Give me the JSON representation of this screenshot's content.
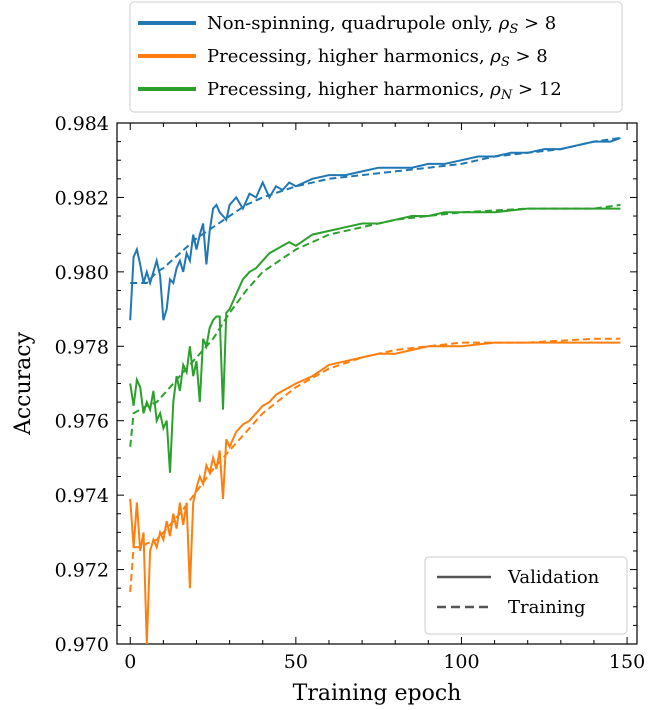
{
  "chart_data": {
    "type": "line",
    "xlabel": "Training epoch",
    "ylabel": "Accuracy",
    "xlim": [
      -4,
      153
    ],
    "ylim": [
      0.97,
      0.984
    ],
    "xticks": [
      0,
      50,
      100,
      150
    ],
    "yticks": [
      0.97,
      0.972,
      0.974,
      0.976,
      0.978,
      0.98,
      0.982,
      0.984
    ],
    "xtick_labels": [
      "0",
      "50",
      "100",
      "150"
    ],
    "ytick_labels": [
      "0.970",
      "0.972",
      "0.974",
      "0.976",
      "0.978",
      "0.980",
      "0.982",
      "0.984"
    ],
    "grid": false,
    "legend_top": {
      "placement": "above plot",
      "entries": [
        {
          "label_prefix": "Non-spinning, quadrupole only, ",
          "label_math": "ρ",
          "label_sub": "S",
          "label_suffix": " > 8",
          "color": "#1f77b4"
        },
        {
          "label_prefix": "Precessing, higher harmonics, ",
          "label_math": "ρ",
          "label_sub": "S",
          "label_suffix": " > 8",
          "color": "#ff7f0e"
        },
        {
          "label_prefix": "Precessing, higher harmonics, ",
          "label_math": "ρ",
          "label_sub": "N",
          "label_suffix": " > 12",
          "color": "#2ca02c"
        }
      ]
    },
    "legend_style": {
      "placement": "lower right",
      "entries": [
        {
          "label": "Validation",
          "style": "solid",
          "color": "#555555"
        },
        {
          "label": "Training",
          "style": "dashed",
          "color": "#555555"
        }
      ]
    },
    "series": [
      {
        "color": "#1f77b4",
        "validation": [
          [
            0,
            0.9787
          ],
          [
            1,
            0.9804
          ],
          [
            2,
            0.9806
          ],
          [
            3,
            0.9802
          ],
          [
            4,
            0.9797
          ],
          [
            5,
            0.98
          ],
          [
            6,
            0.9797
          ],
          [
            7,
            0.98
          ],
          [
            8,
            0.9803
          ],
          [
            9,
            0.9799
          ],
          [
            10,
            0.9787
          ],
          [
            11,
            0.979
          ],
          [
            12,
            0.9798
          ],
          [
            13,
            0.9797
          ],
          [
            14,
            0.9801
          ],
          [
            15,
            0.9803
          ],
          [
            16,
            0.98
          ],
          [
            17,
            0.9805
          ],
          [
            18,
            0.9803
          ],
          [
            19,
            0.981
          ],
          [
            20,
            0.9806
          ],
          [
            21,
            0.981
          ],
          [
            22,
            0.9813
          ],
          [
            23,
            0.9802
          ],
          [
            24,
            0.9811
          ],
          [
            25,
            0.9817
          ],
          [
            26,
            0.9818
          ],
          [
            27,
            0.9816
          ],
          [
            28,
            0.9815
          ],
          [
            29,
            0.9814
          ],
          [
            30,
            0.9818
          ],
          [
            32,
            0.982
          ],
          [
            34,
            0.9817
          ],
          [
            36,
            0.9821
          ],
          [
            38,
            0.982
          ],
          [
            40,
            0.9824
          ],
          [
            42,
            0.982
          ],
          [
            44,
            0.9823
          ],
          [
            46,
            0.9822
          ],
          [
            48,
            0.9824
          ],
          [
            50,
            0.9823
          ],
          [
            55,
            0.9825
          ],
          [
            60,
            0.9826
          ],
          [
            65,
            0.9826
          ],
          [
            70,
            0.9827
          ],
          [
            75,
            0.9828
          ],
          [
            80,
            0.9828
          ],
          [
            85,
            0.9828
          ],
          [
            90,
            0.9829
          ],
          [
            95,
            0.9829
          ],
          [
            100,
            0.983
          ],
          [
            105,
            0.9831
          ],
          [
            110,
            0.9831
          ],
          [
            115,
            0.9832
          ],
          [
            120,
            0.9832
          ],
          [
            125,
            0.9833
          ],
          [
            130,
            0.9833
          ],
          [
            135,
            0.9834
          ],
          [
            140,
            0.9835
          ],
          [
            145,
            0.9835
          ],
          [
            148,
            0.9836
          ]
        ],
        "training": [
          [
            0,
            0.9797
          ],
          [
            2,
            0.9797
          ],
          [
            5,
            0.9797
          ],
          [
            8,
            0.98
          ],
          [
            10,
            0.9801
          ],
          [
            15,
            0.9805
          ],
          [
            20,
            0.9809
          ],
          [
            25,
            0.9812
          ],
          [
            30,
            0.9815
          ],
          [
            35,
            0.9818
          ],
          [
            40,
            0.982
          ],
          [
            50,
            0.9823
          ],
          [
            60,
            0.9825
          ],
          [
            70,
            0.9826
          ],
          [
            80,
            0.9827
          ],
          [
            90,
            0.9828
          ],
          [
            100,
            0.9829
          ],
          [
            110,
            0.9831
          ],
          [
            120,
            0.9832
          ],
          [
            130,
            0.9833
          ],
          [
            140,
            0.9835
          ],
          [
            148,
            0.9836
          ]
        ]
      },
      {
        "color": "#ff7f0e",
        "validation": [
          [
            0,
            0.9739
          ],
          [
            1,
            0.9726
          ],
          [
            2,
            0.9738
          ],
          [
            3,
            0.9725
          ],
          [
            4,
            0.973
          ],
          [
            5,
            0.97
          ],
          [
            6,
            0.9725
          ],
          [
            7,
            0.9728
          ],
          [
            8,
            0.9726
          ],
          [
            9,
            0.973
          ],
          [
            10,
            0.9728
          ],
          [
            11,
            0.9733
          ],
          [
            12,
            0.9729
          ],
          [
            13,
            0.9735
          ],
          [
            14,
            0.9731
          ],
          [
            15,
            0.9738
          ],
          [
            16,
            0.9732
          ],
          [
            17,
            0.9738
          ],
          [
            18,
            0.9715
          ],
          [
            19,
            0.9738
          ],
          [
            20,
            0.9742
          ],
          [
            21,
            0.9745
          ],
          [
            22,
            0.9743
          ],
          [
            23,
            0.9748
          ],
          [
            24,
            0.9746
          ],
          [
            25,
            0.975
          ],
          [
            26,
            0.9747
          ],
          [
            27,
            0.9752
          ],
          [
            28,
            0.9739
          ],
          [
            29,
            0.9755
          ],
          [
            30,
            0.9753
          ],
          [
            32,
            0.9757
          ],
          [
            34,
            0.9759
          ],
          [
            36,
            0.976
          ],
          [
            38,
            0.9762
          ],
          [
            40,
            0.9764
          ],
          [
            42,
            0.9765
          ],
          [
            44,
            0.9767
          ],
          [
            46,
            0.9768
          ],
          [
            48,
            0.9769
          ],
          [
            50,
            0.977
          ],
          [
            55,
            0.9772
          ],
          [
            60,
            0.9775
          ],
          [
            65,
            0.9776
          ],
          [
            70,
            0.9777
          ],
          [
            75,
            0.9778
          ],
          [
            80,
            0.9778
          ],
          [
            85,
            0.9779
          ],
          [
            90,
            0.978
          ],
          [
            95,
            0.978
          ],
          [
            100,
            0.978
          ],
          [
            110,
            0.9781
          ],
          [
            120,
            0.9781
          ],
          [
            130,
            0.9781
          ],
          [
            140,
            0.9781
          ],
          [
            148,
            0.9781
          ]
        ],
        "training": [
          [
            0,
            0.9714
          ],
          [
            1,
            0.9726
          ],
          [
            3,
            0.9726
          ],
          [
            5,
            0.9727
          ],
          [
            8,
            0.9728
          ],
          [
            10,
            0.973
          ],
          [
            15,
            0.9735
          ],
          [
            20,
            0.9741
          ],
          [
            25,
            0.9747
          ],
          [
            30,
            0.9752
          ],
          [
            35,
            0.9757
          ],
          [
            40,
            0.9762
          ],
          [
            50,
            0.9769
          ],
          [
            60,
            0.9774
          ],
          [
            70,
            0.9777
          ],
          [
            80,
            0.9779
          ],
          [
            90,
            0.978
          ],
          [
            100,
            0.9781
          ],
          [
            120,
            0.9781
          ],
          [
            140,
            0.9782
          ],
          [
            148,
            0.9782
          ]
        ]
      },
      {
        "color": "#2ca02c",
        "validation": [
          [
            0,
            0.977
          ],
          [
            1,
            0.9764
          ],
          [
            2,
            0.9771
          ],
          [
            3,
            0.9769
          ],
          [
            4,
            0.9762
          ],
          [
            5,
            0.9765
          ],
          [
            6,
            0.9763
          ],
          [
            7,
            0.9768
          ],
          [
            8,
            0.976
          ],
          [
            9,
            0.9762
          ],
          [
            10,
            0.9758
          ],
          [
            11,
            0.976
          ],
          [
            12,
            0.9746
          ],
          [
            13,
            0.9765
          ],
          [
            14,
            0.9772
          ],
          [
            15,
            0.9768
          ],
          [
            16,
            0.9775
          ],
          [
            17,
            0.9773
          ],
          [
            18,
            0.978
          ],
          [
            19,
            0.9772
          ],
          [
            20,
            0.9776
          ],
          [
            21,
            0.9765
          ],
          [
            22,
            0.9782
          ],
          [
            23,
            0.978
          ],
          [
            24,
            0.9785
          ],
          [
            25,
            0.9787
          ],
          [
            26,
            0.9788
          ],
          [
            27,
            0.9788
          ],
          [
            28,
            0.9763
          ],
          [
            29,
            0.9789
          ],
          [
            30,
            0.979
          ],
          [
            32,
            0.9794
          ],
          [
            34,
            0.9798
          ],
          [
            36,
            0.98
          ],
          [
            38,
            0.9801
          ],
          [
            40,
            0.9803
          ],
          [
            42,
            0.9805
          ],
          [
            44,
            0.9806
          ],
          [
            46,
            0.9807
          ],
          [
            48,
            0.9808
          ],
          [
            50,
            0.9807
          ],
          [
            55,
            0.981
          ],
          [
            60,
            0.9811
          ],
          [
            65,
            0.9812
          ],
          [
            70,
            0.9813
          ],
          [
            75,
            0.9813
          ],
          [
            80,
            0.9814
          ],
          [
            85,
            0.9815
          ],
          [
            90,
            0.9815
          ],
          [
            95,
            0.9816
          ],
          [
            100,
            0.9816
          ],
          [
            110,
            0.9816
          ],
          [
            120,
            0.9817
          ],
          [
            130,
            0.9817
          ],
          [
            140,
            0.9817
          ],
          [
            148,
            0.9817
          ]
        ],
        "training": [
          [
            0,
            0.9753
          ],
          [
            1,
            0.9762
          ],
          [
            3,
            0.9763
          ],
          [
            5,
            0.9764
          ],
          [
            8,
            0.9765
          ],
          [
            10,
            0.9767
          ],
          [
            15,
            0.9772
          ],
          [
            20,
            0.9777
          ],
          [
            25,
            0.9782
          ],
          [
            30,
            0.9789
          ],
          [
            35,
            0.9795
          ],
          [
            40,
            0.98
          ],
          [
            50,
            0.9806
          ],
          [
            60,
            0.981
          ],
          [
            70,
            0.9812
          ],
          [
            80,
            0.9814
          ],
          [
            90,
            0.9815
          ],
          [
            100,
            0.9816
          ],
          [
            120,
            0.9817
          ],
          [
            140,
            0.9817
          ],
          [
            148,
            0.9818
          ]
        ]
      }
    ]
  }
}
